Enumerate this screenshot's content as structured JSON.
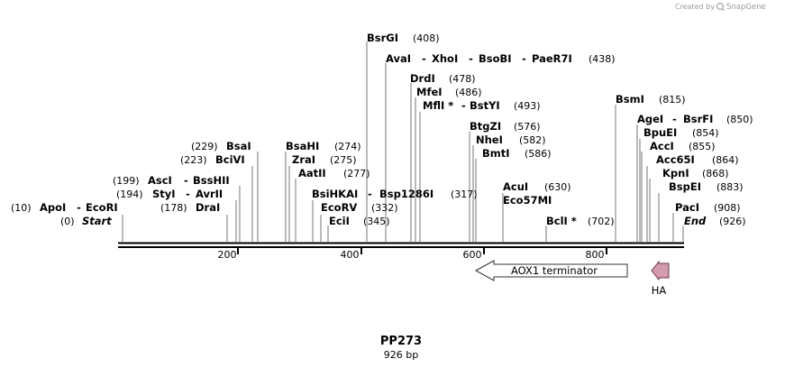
{
  "credit": {
    "prefix": "Created by",
    "brand": "SnapGene"
  },
  "map": {
    "name": "PP273",
    "length_label": "926 bp",
    "total_bp": 926,
    "ticks": [
      "200",
      "400",
      "600",
      "800"
    ],
    "sites": [
      {
        "pos": 10,
        "pos_label": "(10)",
        "names": [
          "ApoI",
          "EcoRI"
        ]
      },
      {
        "pos": 0,
        "pos_label": "(0)",
        "names": [
          "Start"
        ],
        "italic": true
      },
      {
        "pos": 178,
        "pos_label": "(178)",
        "names": [
          "DraI"
        ]
      },
      {
        "pos": 194,
        "pos_label": "(194)",
        "names": [
          "StyI",
          "AvrII"
        ]
      },
      {
        "pos": 199,
        "pos_label": "(199)",
        "names": [
          "AscI",
          "BssHII"
        ]
      },
      {
        "pos": 223,
        "pos_label": "(223)",
        "names": [
          "BciVI"
        ]
      },
      {
        "pos": 229,
        "pos_label": "(229)",
        "names": [
          "BsaI"
        ]
      },
      {
        "pos": 274,
        "pos_label": "(274)",
        "names": [
          "BsaHI"
        ]
      },
      {
        "pos": 275,
        "pos_label": "(275)",
        "names": [
          "ZraI"
        ]
      },
      {
        "pos": 277,
        "pos_label": "(277)",
        "names": [
          "AatII"
        ]
      },
      {
        "pos": 317,
        "pos_label": "(317)",
        "names": [
          "BsiHKAI",
          "Bsp1286I"
        ]
      },
      {
        "pos": 332,
        "pos_label": "(332)",
        "names": [
          "EcoRV"
        ]
      },
      {
        "pos": 345,
        "pos_label": "(345)",
        "names": [
          "EciI"
        ]
      },
      {
        "pos": 408,
        "pos_label": "(408)",
        "names": [
          "BsrGI"
        ]
      },
      {
        "pos": 438,
        "pos_label": "(438)",
        "names": [
          "AvaI",
          "XhoI",
          "BsoBI",
          "PaeR7I"
        ]
      },
      {
        "pos": 478,
        "pos_label": "(478)",
        "names": [
          "DrdI"
        ]
      },
      {
        "pos": 486,
        "pos_label": "(486)",
        "names": [
          "MfeI"
        ]
      },
      {
        "pos": 493,
        "pos_label": "(493)",
        "names": [
          "MflI *",
          "BstYI"
        ]
      },
      {
        "pos": 576,
        "pos_label": "(576)",
        "names": [
          "BtgZI"
        ]
      },
      {
        "pos": 582,
        "pos_label": "(582)",
        "names": [
          "NheI"
        ]
      },
      {
        "pos": 586,
        "pos_label": "(586)",
        "names": [
          "BmtI"
        ]
      },
      {
        "pos": 630,
        "pos_label": "(630)",
        "names": [
          "AcuI"
        ]
      },
      {
        "pos": 630,
        "pos_label": "",
        "names": [
          "Eco57MI"
        ]
      },
      {
        "pos": 702,
        "pos_label": "(702)",
        "names": [
          "BclI *"
        ]
      },
      {
        "pos": 815,
        "pos_label": "(815)",
        "names": [
          "BsmI"
        ]
      },
      {
        "pos": 850,
        "pos_label": "(850)",
        "names": [
          "AgeI",
          "BsrFI"
        ]
      },
      {
        "pos": 854,
        "pos_label": "(854)",
        "names": [
          "BpuEI"
        ]
      },
      {
        "pos": 855,
        "pos_label": "(855)",
        "names": [
          "AccI"
        ]
      },
      {
        "pos": 864,
        "pos_label": "(864)",
        "names": [
          "Acc65I"
        ]
      },
      {
        "pos": 868,
        "pos_label": "(868)",
        "names": [
          "KpnI"
        ]
      },
      {
        "pos": 883,
        "pos_label": "(883)",
        "names": [
          "BspEI"
        ]
      },
      {
        "pos": 908,
        "pos_label": "(908)",
        "names": [
          "PacI"
        ]
      },
      {
        "pos": 926,
        "pos_label": "(926)",
        "names": [
          "End"
        ],
        "italic": true
      }
    ],
    "features": [
      {
        "name": "AOX1 terminator",
        "start": 585,
        "end": 826,
        "direction": "reverse",
        "color": "#ffffff",
        "stroke": "#333333"
      },
      {
        "name": "HA",
        "start": 870,
        "end": 897,
        "direction": "reverse",
        "color": "#d49aae",
        "stroke": "#6b3a4c"
      }
    ]
  }
}
